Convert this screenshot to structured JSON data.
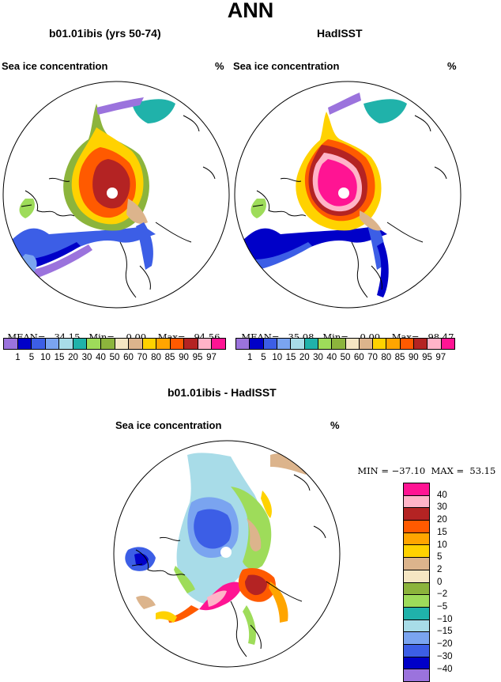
{
  "title": "ANN",
  "panels": [
    {
      "header": "b01.01ibis (yrs 50-74)",
      "variable": "Sea ice concentration",
      "units": "%",
      "stats": {
        "mean_label": "MEAN=",
        "mean": "34.15",
        "min_label": "Min=",
        "min": "0.00",
        "max_label": "Max=",
        "max": "94.56"
      }
    },
    {
      "header": "HadISST",
      "variable": "Sea ice concentration",
      "units": "%",
      "stats": {
        "mean_label": "MEAN=",
        "mean": "35.08",
        "min_label": "Min=",
        "min": "0.00",
        "max_label": "Max=",
        "max": "98.47"
      }
    }
  ],
  "diff_panel": {
    "header": "b01.01ibis - HadISST",
    "variable": "Sea ice concentration",
    "units": "%",
    "stats": {
      "min_label": "MIN =",
      "min": "−37.10",
      "max_label": "MAX =",
      "max": "53.15"
    }
  },
  "colorbar_concentration": {
    "labels": [
      "1",
      "5",
      "10",
      "15",
      "20",
      "30",
      "40",
      "50",
      "60",
      "70",
      "80",
      "85",
      "90",
      "95",
      "97"
    ],
    "colors": [
      "#9b73dd",
      "#0000c8",
      "#3c5ee6",
      "#7aa4f0",
      "#a8dce8",
      "#20b2aa",
      "#9edc5a",
      "#8cb43c",
      "#f5e6c3",
      "#dcb48c",
      "#ffd200",
      "#ffa500",
      "#ff5a00",
      "#b42323",
      "#ffb4c8",
      "#ff1493"
    ]
  },
  "colorbar_difference": {
    "labels": [
      "40",
      "30",
      "20",
      "15",
      "10",
      "5",
      "2",
      "0",
      "−2",
      "−5",
      "−10",
      "−15",
      "−20",
      "−30",
      "−40"
    ],
    "colors": [
      "#ff1493",
      "#ffb4c8",
      "#b42323",
      "#ff5a00",
      "#ffa500",
      "#ffd200",
      "#dcb48c",
      "#f5e6c3",
      "#8cb43c",
      "#9edc5a",
      "#20b2aa",
      "#a8dce8",
      "#7aa4f0",
      "#3c5ee6",
      "#0000c8",
      "#9b73dd"
    ]
  }
}
